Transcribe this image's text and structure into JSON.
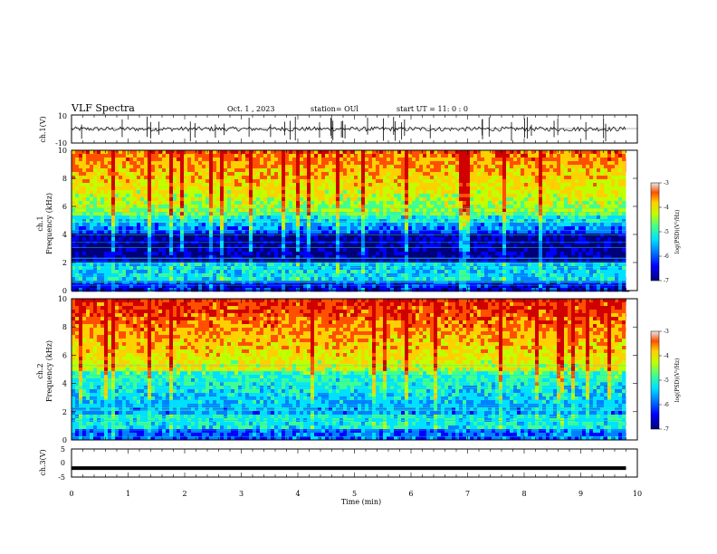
{
  "header": {
    "title": "VLF Spectra",
    "date": "Oct. 1  , 2023",
    "station": "station= OUl",
    "start_ut": "start  UT  =   11: 0  : 0"
  },
  "chart_data": [
    {
      "type": "line",
      "panel": "ch1-waveform",
      "ylabel": "ch.1(V)",
      "ylim": [
        -10,
        10
      ],
      "y_ticks": [
        "10",
        "-10"
      ],
      "x_range_min": [
        0,
        9.8
      ],
      "series": [
        {
          "values": []
        }
      ]
    },
    {
      "type": "heatmap",
      "panel": "ch1-spectrogram",
      "ylabel_channel": "ch.1",
      "ylabel": "Frequency  (kHz)",
      "ylim": [
        0,
        10
      ],
      "y_ticks": [
        "0",
        "2",
        "4",
        "6",
        "8",
        "10"
      ],
      "x_range_min": [
        0,
        9.8
      ],
      "colorbar": {
        "label": "log(PSD)(V²/Hz)",
        "range": [
          -7,
          -3
        ],
        "ticks": [
          "-3",
          "-4",
          "-5",
          "-6",
          "-7"
        ]
      }
    },
    {
      "type": "heatmap",
      "panel": "ch2-spectrogram",
      "ylabel_channel": "ch.2",
      "ylabel": "Frequency  (kHz)",
      "ylim": [
        0,
        10
      ],
      "y_ticks": [
        "0",
        "2",
        "4",
        "6",
        "8",
        "10"
      ],
      "x_range_min": [
        0,
        9.8
      ],
      "colorbar": {
        "label": "log(PSD)(V²/Hz)",
        "range": [
          -7,
          -3
        ],
        "ticks": [
          "-3",
          "-4",
          "-5",
          "-6",
          "-7"
        ]
      }
    },
    {
      "type": "line",
      "panel": "ch3-waveform",
      "ylabel": "ch.3(V)",
      "ylim": [
        -5,
        5
      ],
      "y_ticks": [
        "5",
        "0",
        "-5"
      ],
      "x_range_min": [
        0,
        9.8
      ],
      "series": [
        {
          "values": [
            -1.8,
            -1.8
          ]
        }
      ]
    }
  ],
  "xaxis": {
    "label": "Time  (min)",
    "range": [
      0,
      10
    ],
    "ticks": [
      "0",
      "1",
      "2",
      "3",
      "4",
      "5",
      "6",
      "7",
      "8",
      "9",
      "10"
    ]
  },
  "colors": {
    "colormap": [
      "#00007a",
      "#0000ff",
      "#0080ff",
      "#00e0ff",
      "#40ff90",
      "#c0ff00",
      "#ffd000",
      "#ff5000",
      "#d00000"
    ],
    "trace": "#000000"
  }
}
